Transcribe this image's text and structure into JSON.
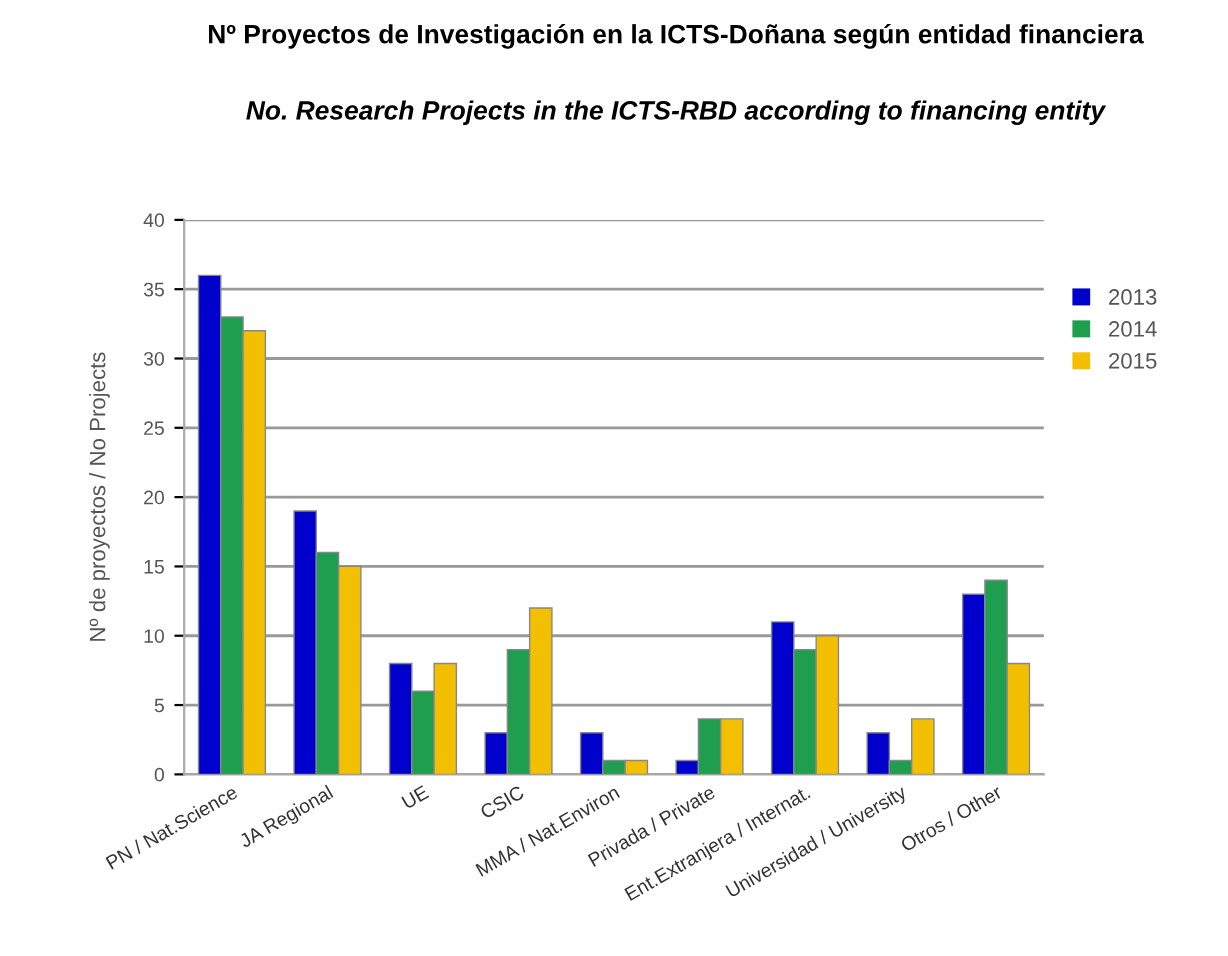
{
  "chart_data": {
    "type": "bar",
    "title": "Nº Proyectos de Investigación en la ICTS-Doñana según entidad financiera",
    "subtitle": "No. Research Projects in the ICTS-RBD according to financing entity",
    "ylabel": "Nº de proyectos / No Projects",
    "categories": [
      "PN / Nat.Science",
      "JA Regional",
      "UE",
      "CSIC",
      "MMA / Nat.Environ",
      "Privada / Private",
      "Ent.Extranjera / Internat.",
      "Universidad / University",
      "Otros / Other"
    ],
    "series": [
      {
        "name": "2013",
        "color": "#0000cc",
        "values": [
          36,
          19,
          8,
          3,
          3,
          1,
          11,
          3,
          13
        ]
      },
      {
        "name": "2014",
        "color": "#1f9e50",
        "values": [
          33,
          16,
          6,
          9,
          1,
          4,
          9,
          1,
          14
        ]
      },
      {
        "name": "2015",
        "color": "#f2c000",
        "values": [
          32,
          15,
          8,
          12,
          1,
          4,
          10,
          4,
          8
        ]
      }
    ],
    "ylim": [
      0,
      40
    ],
    "yticks": [
      0,
      5,
      10,
      15,
      20,
      25,
      30,
      35,
      40
    ],
    "grid": "y",
    "legend": "right"
  }
}
